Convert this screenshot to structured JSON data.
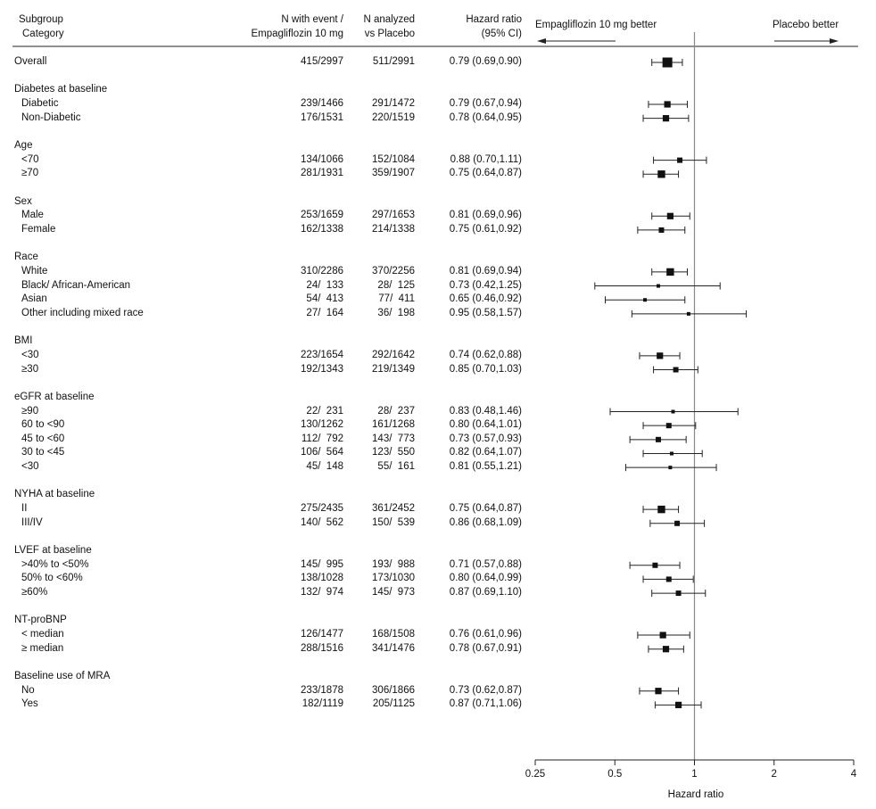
{
  "header": {
    "subgroup": "Subgroup",
    "category": "Category",
    "col_empa_1": "N with event /",
    "col_empa_2": "Empagliflozin 10 mg",
    "col_plac_1": "N analyzed",
    "col_plac_2": "vs Placebo",
    "col_hr_1": "Hazard ratio",
    "col_hr_2": "(95% CI)",
    "arrow_left": "Empagliflozin 10 mg better",
    "arrow_right": "Placebo better"
  },
  "chart_data": {
    "type": "forest",
    "xlabel": "Hazard ratio",
    "x_scale": "log",
    "xlim": [
      0.25,
      4
    ],
    "x_ticks": [
      "0.25",
      "0.5",
      "1",
      "2",
      "4"
    ],
    "reference_line": 1,
    "rows": [
      {
        "kind": "item",
        "label": "Overall",
        "empa": "415/2997",
        "plac": "511/2991",
        "hr_text": "0.79 (0.69,0.90)",
        "hr": 0.79,
        "lo": 0.69,
        "hi": 0.9,
        "size": "xl"
      },
      {
        "kind": "gap"
      },
      {
        "kind": "group",
        "label": "Diabetes at baseline"
      },
      {
        "kind": "item",
        "label": "Diabetic",
        "empa": "239/1466",
        "plac": "291/1472",
        "hr_text": "0.79 (0.67,0.94)",
        "hr": 0.79,
        "lo": 0.67,
        "hi": 0.94,
        "size": "m"
      },
      {
        "kind": "item",
        "label": "Non-Diabetic",
        "empa": "176/1531",
        "plac": "220/1519",
        "hr_text": "0.78 (0.64,0.95)",
        "hr": 0.78,
        "lo": 0.64,
        "hi": 0.95,
        "size": "m"
      },
      {
        "kind": "gap"
      },
      {
        "kind": "group",
        "label": "Age"
      },
      {
        "kind": "item",
        "label": "<70",
        "empa": "134/1066",
        "plac": "152/1084",
        "hr_text": "0.88 (0.70,1.11)",
        "hr": 0.88,
        "lo": 0.7,
        "hi": 1.11,
        "size": "s"
      },
      {
        "kind": "item",
        "label": "≥70",
        "empa": "281/1931",
        "plac": "359/1907",
        "hr_text": "0.75 (0.64,0.87)",
        "hr": 0.75,
        "lo": 0.64,
        "hi": 0.87,
        "size": "l"
      },
      {
        "kind": "gap"
      },
      {
        "kind": "group",
        "label": "Sex"
      },
      {
        "kind": "item",
        "label": "Male",
        "empa": "253/1659",
        "plac": "297/1653",
        "hr_text": "0.81 (0.69,0.96)",
        "hr": 0.81,
        "lo": 0.69,
        "hi": 0.96,
        "size": "m"
      },
      {
        "kind": "item",
        "label": "Female",
        "empa": "162/1338",
        "plac": "214/1338",
        "hr_text": "0.75 (0.61,0.92)",
        "hr": 0.75,
        "lo": 0.61,
        "hi": 0.92,
        "size": "s"
      },
      {
        "kind": "gap"
      },
      {
        "kind": "group",
        "label": "Race"
      },
      {
        "kind": "item",
        "label": "White",
        "empa": "310/2286",
        "plac": "370/2256",
        "hr_text": "0.81 (0.69,0.94)",
        "hr": 0.81,
        "lo": 0.69,
        "hi": 0.94,
        "size": "l"
      },
      {
        "kind": "item",
        "label": "Black/ African-American",
        "empa": " 24/  133",
        "plac": " 28/  125",
        "hr_text": "0.73 (0.42,1.25)",
        "hr": 0.73,
        "lo": 0.42,
        "hi": 1.25,
        "size": "xs"
      },
      {
        "kind": "item",
        "label": "Asian",
        "empa": " 54/  413",
        "plac": " 77/  411",
        "hr_text": "0.65 (0.46,0.92)",
        "hr": 0.65,
        "lo": 0.46,
        "hi": 0.92,
        "size": "xs"
      },
      {
        "kind": "item",
        "label": "Other including mixed race",
        "empa": " 27/  164",
        "plac": " 36/  198",
        "hr_text": "0.95 (0.58,1.57)",
        "hr": 0.95,
        "lo": 0.58,
        "hi": 1.57,
        "size": "xs"
      },
      {
        "kind": "gap"
      },
      {
        "kind": "group",
        "label": "BMI"
      },
      {
        "kind": "item",
        "label": "<30",
        "empa": "223/1654",
        "plac": "292/1642",
        "hr_text": "0.74 (0.62,0.88)",
        "hr": 0.74,
        "lo": 0.62,
        "hi": 0.88,
        "size": "m"
      },
      {
        "kind": "item",
        "label": "≥30",
        "empa": "192/1343",
        "plac": "219/1349",
        "hr_text": "0.85 (0.70,1.03)",
        "hr": 0.85,
        "lo": 0.7,
        "hi": 1.03,
        "size": "s"
      },
      {
        "kind": "gap"
      },
      {
        "kind": "group",
        "label": "eGFR at baseline"
      },
      {
        "kind": "item",
        "label": "≥90",
        "empa": " 22/  231",
        "plac": " 28/  237",
        "hr_text": "0.83 (0.48,1.46)",
        "hr": 0.83,
        "lo": 0.48,
        "hi": 1.46,
        "size": "xs"
      },
      {
        "kind": "item",
        "label": "60 to <90",
        "empa": "130/1262",
        "plac": "161/1268",
        "hr_text": "0.80 (0.64,1.01)",
        "hr": 0.8,
        "lo": 0.64,
        "hi": 1.01,
        "size": "s"
      },
      {
        "kind": "item",
        "label": "45 to <60",
        "empa": "112/  792",
        "plac": "143/  773",
        "hr_text": "0.73 (0.57,0.93)",
        "hr": 0.73,
        "lo": 0.57,
        "hi": 0.93,
        "size": "s"
      },
      {
        "kind": "item",
        "label": "30 to <45",
        "empa": "106/  564",
        "plac": "123/  550",
        "hr_text": "0.82 (0.64,1.07)",
        "hr": 0.82,
        "lo": 0.64,
        "hi": 1.07,
        "size": "xs"
      },
      {
        "kind": "item",
        "label": "<30",
        "empa": " 45/  148",
        "plac": " 55/  161",
        "hr_text": "0.81 (0.55,1.21)",
        "hr": 0.81,
        "lo": 0.55,
        "hi": 1.21,
        "size": "xs"
      },
      {
        "kind": "gap"
      },
      {
        "kind": "group",
        "label": "NYHA at baseline"
      },
      {
        "kind": "item",
        "label": "II",
        "empa": "275/2435",
        "plac": "361/2452",
        "hr_text": "0.75 (0.64,0.87)",
        "hr": 0.75,
        "lo": 0.64,
        "hi": 0.87,
        "size": "l"
      },
      {
        "kind": "item",
        "label": "III/IV",
        "empa": "140/  562",
        "plac": "150/  539",
        "hr_text": "0.86 (0.68,1.09)",
        "hr": 0.86,
        "lo": 0.68,
        "hi": 1.09,
        "size": "s"
      },
      {
        "kind": "gap"
      },
      {
        "kind": "group",
        "label": "LVEF at baseline"
      },
      {
        "kind": "item",
        "label": ">40% to <50%",
        "empa": "145/  995",
        "plac": "193/  988",
        "hr_text": "0.71 (0.57,0.88)",
        "hr": 0.71,
        "lo": 0.57,
        "hi": 0.88,
        "size": "s"
      },
      {
        "kind": "item",
        "label": "50% to <60%",
        "empa": "138/1028",
        "plac": "173/1030",
        "hr_text": "0.80 (0.64,0.99)",
        "hr": 0.8,
        "lo": 0.64,
        "hi": 0.99,
        "size": "s"
      },
      {
        "kind": "item",
        "label": "≥60%",
        "empa": "132/  974",
        "plac": "145/  973",
        "hr_text": "0.87 (0.69,1.10)",
        "hr": 0.87,
        "lo": 0.69,
        "hi": 1.1,
        "size": "s"
      },
      {
        "kind": "gap"
      },
      {
        "kind": "group",
        "label": "NT-proBNP"
      },
      {
        "kind": "item",
        "label": "< median",
        "empa": "126/1477",
        "plac": "168/1508",
        "hr_text": "0.76 (0.61,0.96)",
        "hr": 0.76,
        "lo": 0.61,
        "hi": 0.96,
        "size": "m"
      },
      {
        "kind": "item",
        "label": "≥ median",
        "empa": "288/1516",
        "plac": "341/1476",
        "hr_text": "0.78 (0.67,0.91)",
        "hr": 0.78,
        "lo": 0.67,
        "hi": 0.91,
        "size": "m"
      },
      {
        "kind": "gap"
      },
      {
        "kind": "group",
        "label": "Baseline use of MRA"
      },
      {
        "kind": "item",
        "label": "No",
        "empa": "233/1878",
        "plac": "306/1866",
        "hr_text": "0.73 (0.62,0.87)",
        "hr": 0.73,
        "lo": 0.62,
        "hi": 0.87,
        "size": "m"
      },
      {
        "kind": "item",
        "label": "Yes",
        "empa": "182/1119",
        "plac": "205/1125",
        "hr_text": "0.87 (0.71,1.06)",
        "hr": 0.87,
        "lo": 0.71,
        "hi": 1.06,
        "size": "m"
      }
    ]
  }
}
